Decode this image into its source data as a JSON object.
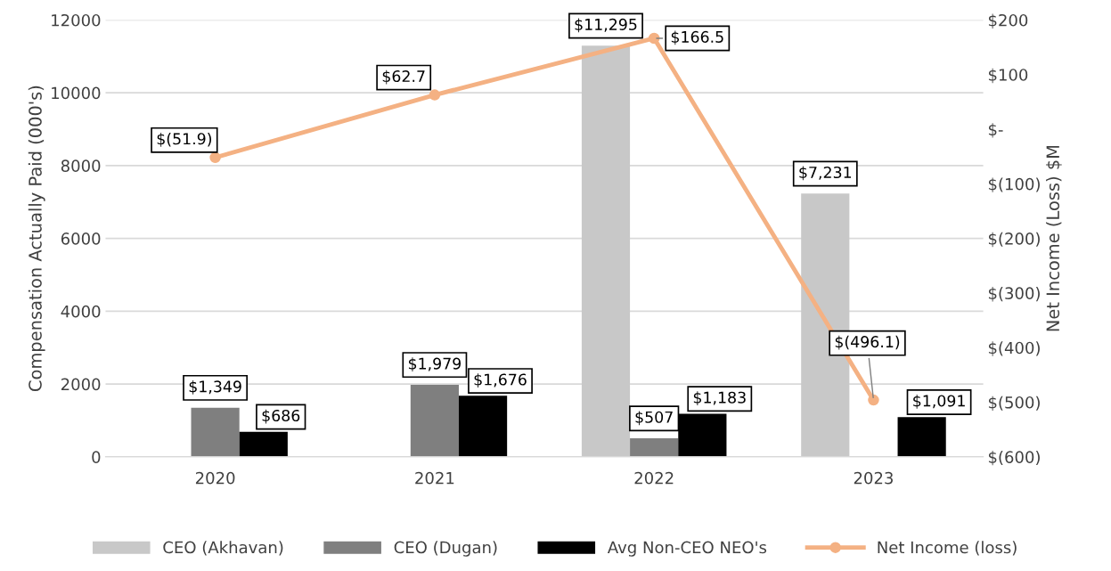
{
  "chart_data": {
    "type": "bar",
    "categories": [
      "2020",
      "2021",
      "2022",
      "2023"
    ],
    "ylabel": "Compensation Actually Paid (000's)",
    "y2label": "Net Income (Loss) $M",
    "ylim": [
      0,
      12000
    ],
    "yticks": [
      0,
      2000,
      4000,
      6000,
      8000,
      10000,
      12000
    ],
    "y2lim": [
      -600,
      200
    ],
    "y2ticks": [
      {
        "value": -600,
        "label": "$(600)"
      },
      {
        "value": -500,
        "label": "$(500)"
      },
      {
        "value": -400,
        "label": "$(400)"
      },
      {
        "value": -300,
        "label": "$(300)"
      },
      {
        "value": -200,
        "label": "$(200)"
      },
      {
        "value": -100,
        "label": "$(100)"
      },
      {
        "value": 0,
        "label": "$-"
      },
      {
        "value": 100,
        "label": "$100"
      },
      {
        "value": 200,
        "label": "$200"
      }
    ],
    "grid": "y",
    "legend": "bottom",
    "series": [
      {
        "name": "CEO (Akhavan)",
        "color": "#c8c8c8",
        "values": [
          null,
          null,
          11295,
          7231
        ],
        "value_labels": [
          null,
          null,
          "$11,295",
          "$7,231"
        ]
      },
      {
        "name": "CEO (Dugan)",
        "color": "#7f7f7f",
        "values": [
          1349,
          1979,
          507,
          null
        ],
        "value_labels": [
          "$1,349",
          "$1,979",
          "$507",
          null
        ]
      },
      {
        "name": "Avg Non-CEO NEO's",
        "color": "#000000",
        "values": [
          686,
          1676,
          1183,
          1091
        ],
        "value_labels": [
          "$686",
          "$1,676",
          "$1,183",
          "$1,091"
        ]
      },
      {
        "name": "Net Income (loss)",
        "type": "line",
        "axis": "y2",
        "color": "#f4b183",
        "marker": "circle",
        "line_style": "solid",
        "values": [
          -51.9,
          62.7,
          166.5,
          -496.1
        ],
        "value_labels": [
          "$(51.9)",
          "$62.7",
          "$166.5",
          "$(496.1)"
        ]
      }
    ]
  }
}
